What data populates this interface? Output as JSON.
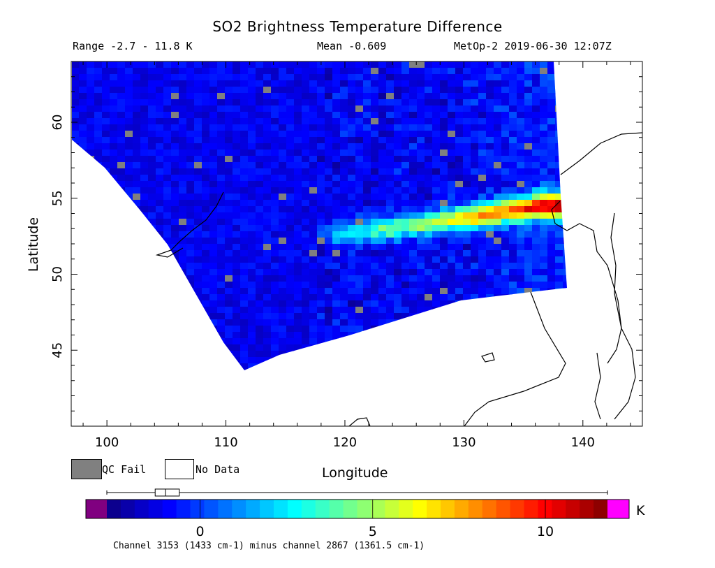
{
  "header": {
    "title": "SO2 Brightness Temperature Difference",
    "range": "Range -2.7 - 11.8 K",
    "mean": "Mean -0.609",
    "satellite": "MetOp-2 2019-06-30 12:07Z"
  },
  "legend": {
    "qc_fail": "QC Fail",
    "no_data": "No Data",
    "qc_fail_color": "#808080"
  },
  "footnote": "Channel 3153 (1433 cm-1) minus channel 2867 (1361.5 cm-1)",
  "chart_data": {
    "type": "heatmap",
    "title": "SO2 Brightness Temperature Difference",
    "xlabel": "Longitude",
    "ylabel": "Latitude",
    "xlim": [
      97,
      145
    ],
    "ylim": [
      40,
      64
    ],
    "xticks": [
      100,
      110,
      120,
      130,
      140
    ],
    "xtick_labels": [
      "100",
      "110",
      "120",
      "130",
      "140"
    ],
    "yticks": [
      45,
      50,
      55,
      60
    ],
    "ytick_labels": [
      "45",
      "50",
      "55",
      "60"
    ],
    "value_range": [
      -2.7,
      11.8
    ],
    "mean": -0.609,
    "units": "K",
    "colorbar": {
      "min": -2.7,
      "max": 11.8,
      "ticks": [
        0,
        5,
        10
      ],
      "tick_labels": [
        "0",
        "5",
        "10"
      ],
      "unit_label": "K",
      "colors": [
        "#0d0080",
        "#0000ff",
        "#0080ff",
        "#00ffff",
        "#80ff80",
        "#ffff00",
        "#ff8000",
        "#ff0000",
        "#800000"
      ],
      "under_color": "#800080",
      "over_color": "#ff00ff"
    },
    "boxplot": {
      "whisker_low": -2.7,
      "q1": -1.3,
      "median": -1.0,
      "q3": -0.6,
      "whisker_high": 11.8
    },
    "plume": [
      {
        "lon": 120,
        "lat": 52.7,
        "value": 3.5
      },
      {
        "lon": 124,
        "lat": 53.0,
        "value": 5.0
      },
      {
        "lon": 128,
        "lat": 53.5,
        "value": 6.5
      },
      {
        "lon": 131,
        "lat": 53.8,
        "value": 8.5
      },
      {
        "lon": 134,
        "lat": 54.2,
        "value": 9.5
      },
      {
        "lon": 137,
        "lat": 54.5,
        "value": 11.5
      }
    ]
  }
}
